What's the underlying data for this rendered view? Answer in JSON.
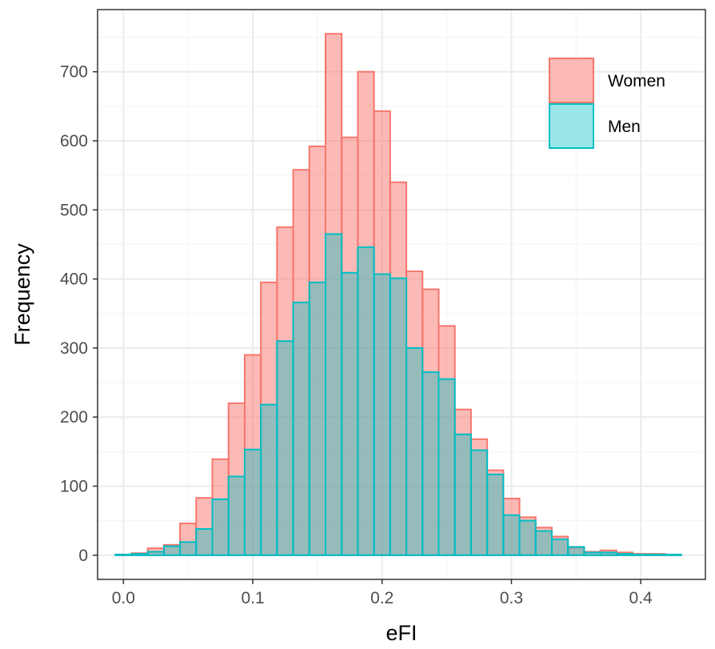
{
  "chart_data": {
    "type": "histogram",
    "xlabel": "eFI",
    "ylabel": "Frequency",
    "xlim": [
      -0.02,
      0.45
    ],
    "ylim": [
      -35,
      790
    ],
    "x_ticks": [
      "0.0",
      "0.1",
      "0.2",
      "0.3",
      "0.4"
    ],
    "x_tick_values": [
      0.0,
      0.1,
      0.2,
      0.3,
      0.4
    ],
    "y_ticks": [
      "0",
      "100",
      "200",
      "300",
      "400",
      "500",
      "600",
      "700"
    ],
    "y_tick_values": [
      0,
      100,
      200,
      300,
      400,
      500,
      600,
      700
    ],
    "grid": true,
    "legend_position": "top-right",
    "bin_width": 0.0125,
    "bin_centers": [
      0.0,
      0.0125,
      0.025,
      0.0375,
      0.05,
      0.0625,
      0.075,
      0.0875,
      0.1,
      0.1125,
      0.125,
      0.1375,
      0.15,
      0.1625,
      0.175,
      0.1875,
      0.2,
      0.2125,
      0.225,
      0.2375,
      0.25,
      0.2625,
      0.275,
      0.2875,
      0.3,
      0.3125,
      0.325,
      0.3375,
      0.35,
      0.3625,
      0.375,
      0.3875,
      0.4,
      0.4125,
      0.425
    ],
    "series": [
      {
        "name": "Women",
        "fill": "#F8766D",
        "values": [
          1,
          3,
          10,
          15,
          46,
          83,
          139,
          220,
          290,
          395,
          475,
          558,
          592,
          755,
          605,
          700,
          643,
          540,
          411,
          385,
          332,
          211,
          168,
          123,
          82,
          55,
          40,
          27,
          11,
          5,
          7,
          4,
          2,
          2,
          1
        ]
      },
      {
        "name": "Men",
        "fill": "#00BFC4",
        "values": [
          1,
          2,
          5,
          13,
          19,
          38,
          81,
          114,
          153,
          218,
          310,
          366,
          395,
          465,
          409,
          446,
          407,
          401,
          300,
          265,
          255,
          175,
          152,
          117,
          58,
          50,
          35,
          23,
          12,
          4,
          4,
          2,
          1,
          1,
          1
        ]
      }
    ]
  }
}
